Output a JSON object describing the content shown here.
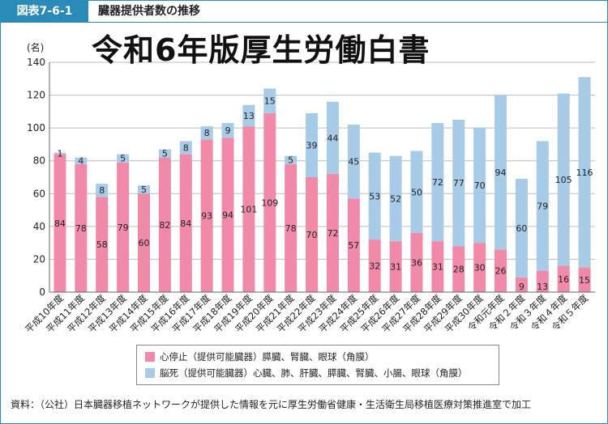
{
  "header": {
    "figure_label": "図表7-6-1",
    "title": "臓器提供者数の推移"
  },
  "watermark": "令和6年版厚生労働白書",
  "source": "資料：（公社）日本臓器移植ネットワークが提供した情報を元に厚生労働省健康・生活衛生局移植医療対策推進室で加工",
  "colors": {
    "cardiac": "#f08aa8",
    "brain": "#a8cbe8",
    "accent": "#2a8ab8"
  },
  "chart_data": {
    "type": "bar",
    "stacked": true,
    "y_unit_label": "(名)",
    "ylim": [
      0,
      140
    ],
    "yticks": [
      0,
      20,
      40,
      60,
      80,
      100,
      120,
      140
    ],
    "grid": true,
    "legend_position": "bottom",
    "categories": [
      "平成10年度",
      "平成11年度",
      "平成12年度",
      "平成13年度",
      "平成14年度",
      "平成15年度",
      "平成16年度",
      "平成17年度",
      "平成18年度",
      "平成19年度",
      "平成20年度",
      "平成21年度",
      "平成22年度",
      "平成23年度",
      "平成24年度",
      "平成25年度",
      "平成26年度",
      "平成27年度",
      "平成28年度",
      "平成29年度",
      "平成30年度",
      "令和元年度",
      "令和２年度",
      "令和３年度",
      "令和４年度",
      "令和５年度"
    ],
    "series": [
      {
        "name": "心停止（提供可能臓器）膵臓、腎臓、眼球（角膜）",
        "values": [
          84,
          78,
          58,
          79,
          60,
          82,
          84,
          93,
          94,
          101,
          109,
          78,
          70,
          72,
          57,
          32,
          31,
          36,
          31,
          28,
          30,
          26,
          9,
          13,
          16,
          15
        ]
      },
      {
        "name": "脳死（提供可能臓器）心臓、肺、肝臓、膵臓、腎臓、小腸、眼球（角膜）",
        "values": [
          1,
          4,
          8,
          5,
          5,
          5,
          8,
          8,
          9,
          13,
          15,
          5,
          39,
          44,
          45,
          53,
          52,
          50,
          72,
          77,
          70,
          94,
          60,
          79,
          105,
          116
        ]
      }
    ]
  }
}
